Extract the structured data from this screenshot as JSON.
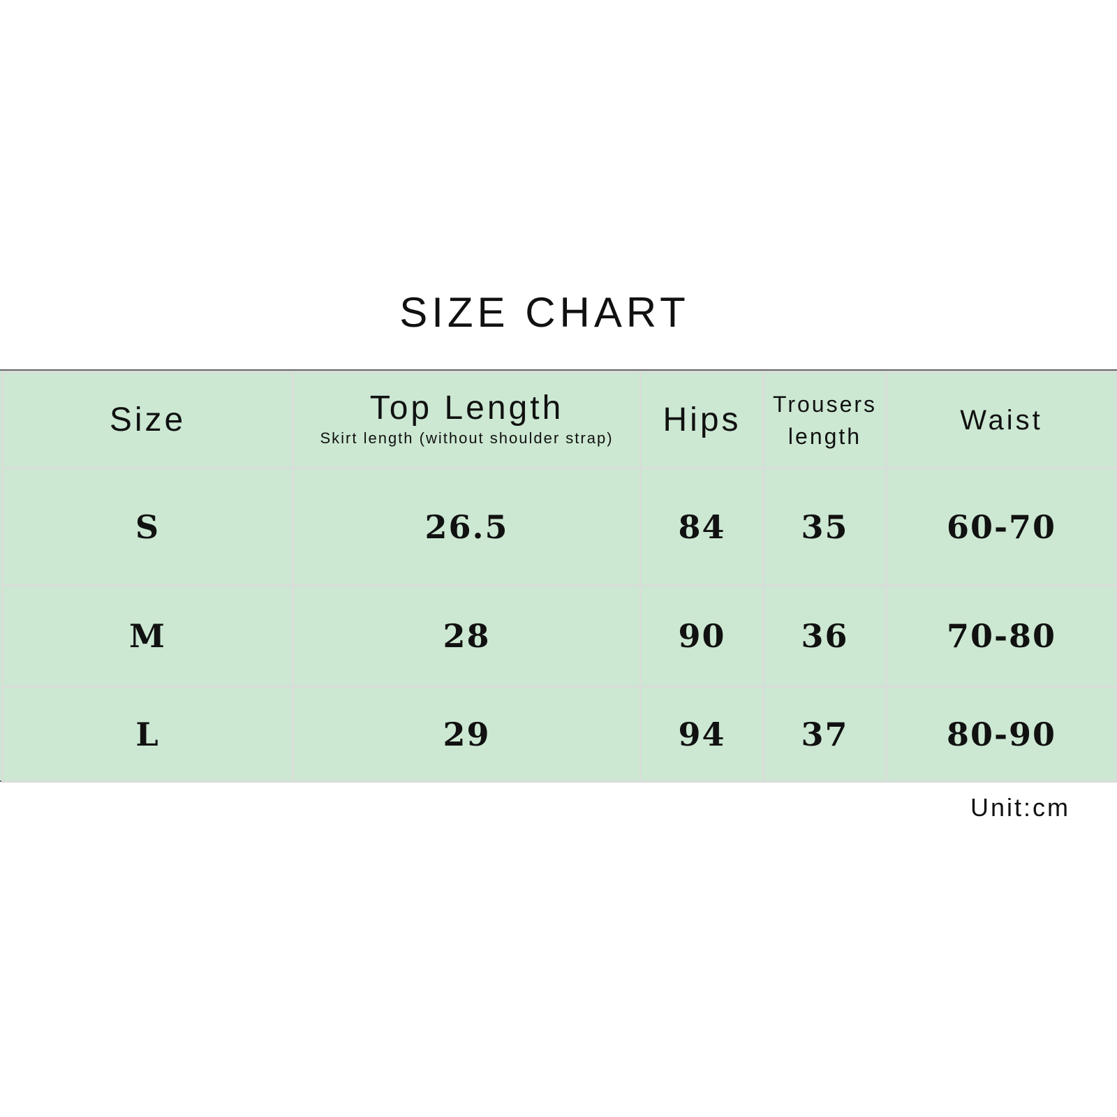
{
  "title": "SIZE CHART",
  "table": {
    "headers": {
      "size": "Size",
      "top_length": "Top Length",
      "top_length_sub": "Skirt length (without shoulder strap)",
      "hips": "Hips",
      "trousers_line1": "Trousers",
      "trousers_line2": "length",
      "waist": "Waist"
    },
    "rows": [
      {
        "size": "S",
        "top_length": "26.5",
        "hips": "84",
        "trousers": "35",
        "waist": "60-70"
      },
      {
        "size": "M",
        "top_length": "28",
        "hips": "90",
        "trousers": "36",
        "waist": "70-80"
      },
      {
        "size": "L",
        "top_length": "29",
        "hips": "94",
        "trousers": "37",
        "waist": "80-90"
      }
    ]
  },
  "unit": "Unit:cm",
  "colors": {
    "table_background": "#cce8d2",
    "grid_lines": "#d9ddd9",
    "border": "#666666"
  }
}
